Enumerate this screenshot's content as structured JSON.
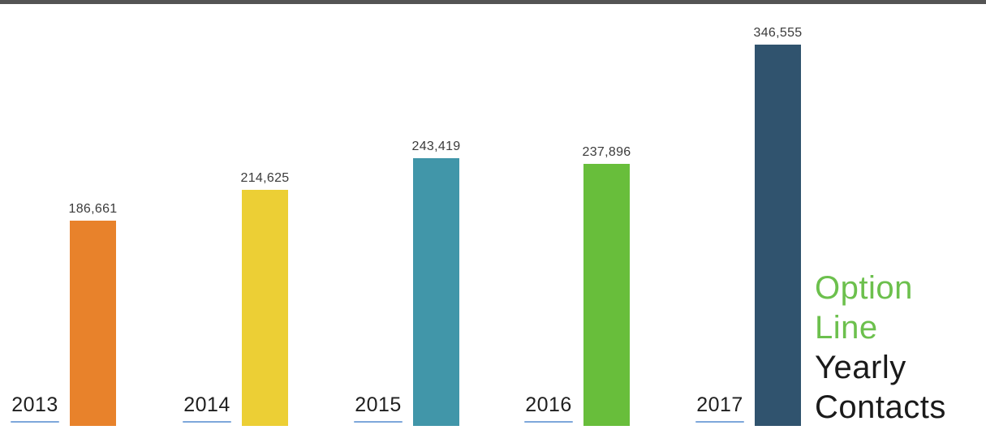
{
  "chart_data": {
    "type": "bar",
    "title": "Option Line Yearly Contacts",
    "categories": [
      "2013",
      "2014",
      "2015",
      "2016",
      "2017"
    ],
    "values": [
      186661,
      214625,
      243419,
      237896,
      346555
    ],
    "value_labels": [
      "186,661",
      "214,625",
      "243,419",
      "237,896",
      "346,555"
    ],
    "series_colors": [
      "#E8822B",
      "#ECCF35",
      "#4196A9",
      "#68BE3B",
      "#30536E"
    ],
    "ylim": [
      0,
      350000
    ],
    "xlabel": "",
    "ylabel": "",
    "grid": "off",
    "legend": "none",
    "axes": "hidden",
    "data_labels_position": "above-bar",
    "category_label_style": "underlined, left of each bar at baseline"
  },
  "title_block": {
    "line1": "Option",
    "line2": "Line",
    "line3": "Yearly",
    "line4": "Contacts",
    "accent_color": "#6CC04D",
    "text_color": "#1A1A1A"
  },
  "styles": {
    "underline_color": "#7EA7DB",
    "top_border_color": "#545454",
    "value_label_color": "#3b3b3b",
    "year_label_color": "#1f1f1f",
    "background_color": "#ffffff"
  }
}
